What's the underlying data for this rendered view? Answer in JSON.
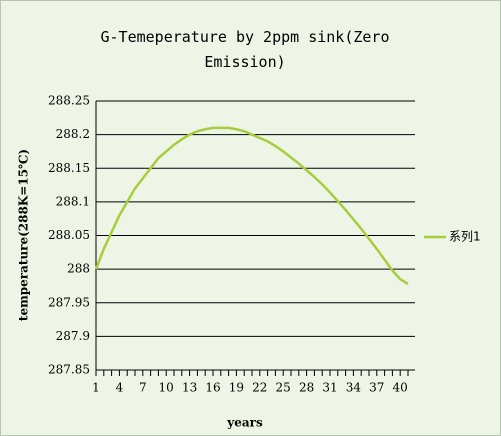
{
  "chart_data": {
    "type": "line",
    "title": "G-Temeperature by 2ppm sink(Zero Emission)",
    "x_label": "years",
    "y_label": "temperature(288K=15℃)",
    "x": [
      1,
      2,
      3,
      4,
      5,
      6,
      7,
      8,
      9,
      10,
      11,
      12,
      13,
      14,
      15,
      16,
      17,
      18,
      19,
      20,
      21,
      22,
      23,
      24,
      25,
      26,
      27,
      28,
      29,
      30,
      31,
      32,
      33,
      34,
      35,
      36,
      37,
      38,
      39,
      40,
      41
    ],
    "series": [
      {
        "name": "系列1",
        "color": "#a8cc3c",
        "values": [
          288.0,
          288.03,
          288.055,
          288.08,
          288.1,
          288.12,
          288.135,
          288.15,
          288.165,
          288.175,
          288.185,
          288.193,
          288.2,
          288.205,
          288.208,
          288.21,
          288.21,
          288.21,
          288.208,
          288.205,
          288.2,
          288.195,
          288.19,
          288.183,
          288.175,
          288.166,
          288.157,
          288.147,
          288.137,
          288.126,
          288.114,
          288.101,
          288.088,
          288.074,
          288.06,
          288.045,
          288.03,
          288.014,
          287.998,
          287.985,
          287.978
        ]
      }
    ],
    "xlim": [
      1,
      41
    ],
    "xticks": [
      1,
      4,
      7,
      10,
      13,
      16,
      19,
      22,
      25,
      28,
      31,
      34,
      37,
      40
    ],
    "ylim": [
      287.85,
      288.25
    ],
    "yticks": [
      287.85,
      287.9,
      287.95,
      288,
      288.05,
      288.1,
      288.15,
      288.2,
      288.25
    ],
    "grid": true,
    "legend": "right"
  }
}
